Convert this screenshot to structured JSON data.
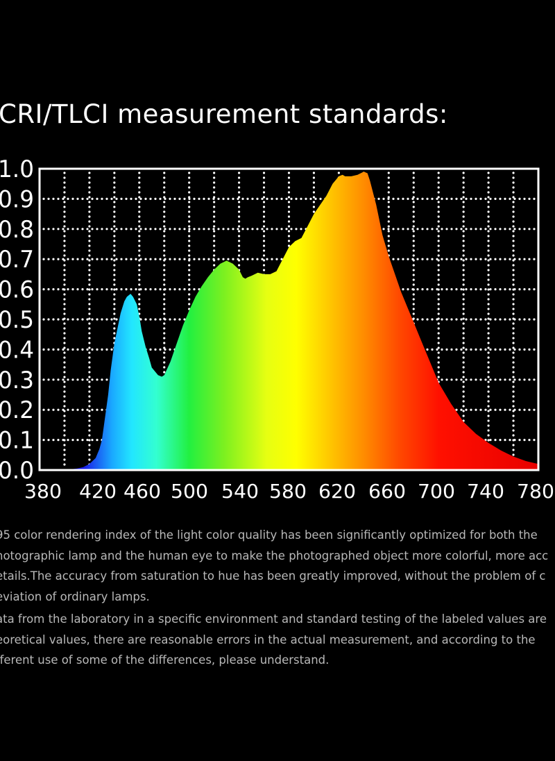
{
  "heading": "CRI/TLCI measurement standards:",
  "chart_data": {
    "type": "area",
    "title": "",
    "xlabel": "",
    "ylabel": "",
    "xlim": [
      380,
      780
    ],
    "ylim": [
      0.0,
      1.0
    ],
    "x_ticks": [
      "380",
      "420",
      "460",
      "500",
      "540",
      "580",
      "620",
      "660",
      "700",
      "740",
      "780"
    ],
    "y_ticks": [
      "0.0",
      "0.1",
      "0.2",
      "0.3",
      "0.4",
      "0.5",
      "0.6",
      "0.7",
      "0.8",
      "0.9",
      "1.0"
    ],
    "grid": true,
    "grid_style": "dotted",
    "fill": "visible-spectrum gradient",
    "series": [
      {
        "x": [
          380,
          400,
          410,
          415,
          420,
          425,
          428,
          430,
          432,
          435,
          437,
          440,
          443,
          445,
          448,
          450,
          453,
          455,
          458,
          460,
          462,
          465,
          468,
          470,
          475,
          478,
          480,
          485,
          490,
          495,
          500,
          505,
          510,
          515,
          520,
          525,
          530,
          535,
          540,
          543,
          545,
          547,
          550,
          555,
          560,
          565,
          570,
          575,
          580,
          585,
          590,
          595,
          600,
          605,
          610,
          615,
          620,
          623,
          625,
          630,
          635,
          640,
          643,
          645,
          650,
          655,
          660,
          665,
          670,
          675,
          680,
          685,
          690,
          695,
          700,
          710,
          720,
          730,
          740,
          750,
          760,
          770,
          780
        ],
        "y": [
          0.0,
          0.0,
          0.005,
          0.01,
          0.02,
          0.04,
          0.07,
          0.1,
          0.16,
          0.25,
          0.33,
          0.42,
          0.48,
          0.52,
          0.56,
          0.575,
          0.585,
          0.575,
          0.55,
          0.51,
          0.46,
          0.41,
          0.37,
          0.34,
          0.315,
          0.31,
          0.315,
          0.36,
          0.42,
          0.48,
          0.53,
          0.575,
          0.61,
          0.64,
          0.665,
          0.685,
          0.695,
          0.685,
          0.665,
          0.64,
          0.635,
          0.64,
          0.645,
          0.655,
          0.65,
          0.65,
          0.66,
          0.7,
          0.74,
          0.76,
          0.77,
          0.81,
          0.85,
          0.88,
          0.91,
          0.95,
          0.975,
          0.98,
          0.975,
          0.975,
          0.98,
          0.99,
          0.985,
          0.96,
          0.88,
          0.78,
          0.71,
          0.65,
          0.59,
          0.54,
          0.49,
          0.44,
          0.39,
          0.34,
          0.29,
          0.22,
          0.16,
          0.12,
          0.09,
          0.065,
          0.045,
          0.03,
          0.02
        ]
      }
    ]
  },
  "paragraph1": [
    "95 color rendering index of the light color quality has been significantly optimized for both the",
    "hotographic lamp and the human eye to make the photographed object more colorful, more acc",
    "etails.The accuracy from saturation to hue has been greatly improved, without the problem of c",
    "eviation of ordinary lamps."
  ],
  "paragraph2": [
    "ata from the laboratory in a specific environment and standard testing of the labeled values are",
    "eoretical values, there are reasonable errors in the actual measurement, and according to the",
    "fferent use of some of the differences, please understand."
  ]
}
